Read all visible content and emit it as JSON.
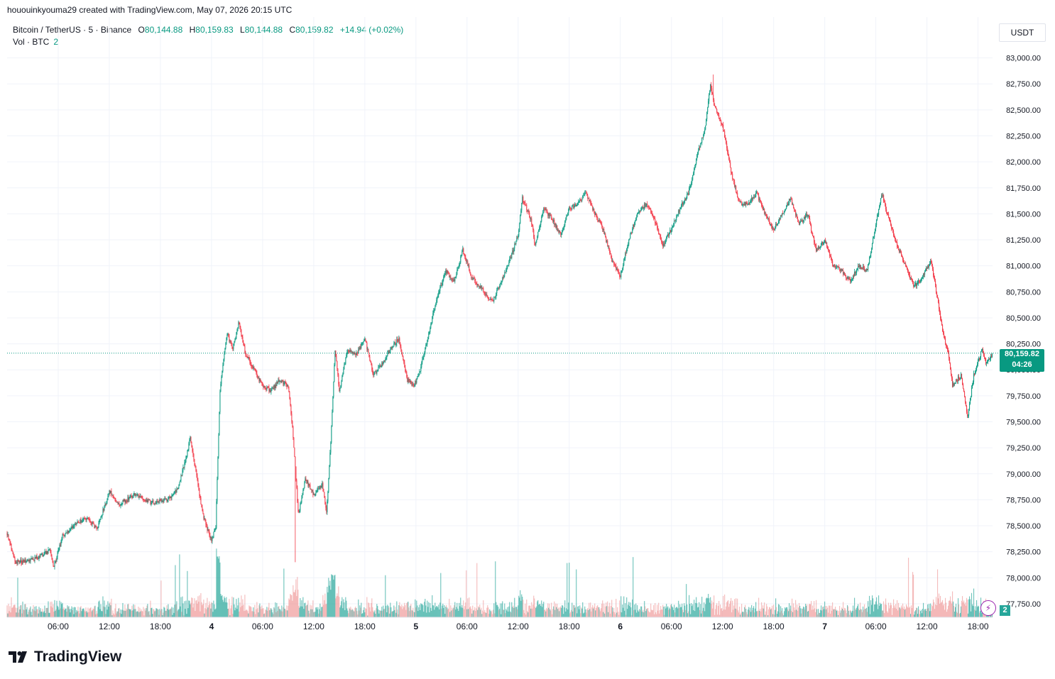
{
  "header": {
    "credit": "hououinkyouma29 created with TradingView.com, May 07, 2026 20:15 UTC"
  },
  "legend": {
    "symbol": "Bitcoin / TetherUS · 5 · Binance",
    "open_label": "O",
    "open": "80,144.88",
    "high_label": "H",
    "high": "80,159.83",
    "low_label": "L",
    "low": "80,144.88",
    "close_label": "C",
    "close": "80,159.82",
    "change": "+14.94 (+0.02%)",
    "vol_label": "Vol · BTC",
    "vol_value": "2"
  },
  "currency_button": "USDT",
  "price_badge": {
    "price": "80,159.82",
    "countdown": "04:26"
  },
  "volume_badge": "2",
  "colors": {
    "up": "#089981",
    "down": "#f23645",
    "up_vol": "#26a69a",
    "down_vol": "#ef9a9a",
    "grid": "#f0f3fa"
  },
  "icons": {
    "alert": "lightning-icon",
    "logo": "tradingview-logo-icon"
  },
  "brand": "TradingView",
  "chart_data": {
    "type": "candlestick",
    "interval": "5m",
    "y_axis": {
      "ylim": [
        77620,
        83120
      ],
      "ticks": [
        77750,
        78000,
        78250,
        78500,
        78750,
        79000,
        79250,
        79500,
        79750,
        80000,
        80250,
        80500,
        80750,
        81000,
        81250,
        81500,
        81750,
        82000,
        82250,
        82500,
        82750,
        83000
      ],
      "tick_labels": [
        "77,750.00",
        "78,000.00",
        "78,250.00",
        "78,500.00",
        "78,750.00",
        "79,000.00",
        "79,250.00",
        "79,500.00",
        "79,750.00",
        "80,000.00",
        "80,250.00",
        "80,500.00",
        "80,750.00",
        "81,000.00",
        "81,250.00",
        "81,500.00",
        "81,750.00",
        "82,000.00",
        "82,250.00",
        "82,500.00",
        "82,750.00",
        "83,000.00"
      ]
    },
    "x_axis": {
      "range_hours": [
        0.0,
        115.7
      ],
      "ticks": [
        {
          "h": 6,
          "label": "06:00"
        },
        {
          "h": 12,
          "label": "12:00"
        },
        {
          "h": 18,
          "label": "18:00"
        },
        {
          "h": 24,
          "label": "4",
          "bold": true
        },
        {
          "h": 30,
          "label": "06:00"
        },
        {
          "h": 36,
          "label": "12:00"
        },
        {
          "h": 42,
          "label": "18:00"
        },
        {
          "h": 48,
          "label": "5",
          "bold": true
        },
        {
          "h": 54,
          "label": "06:00"
        },
        {
          "h": 60,
          "label": "12:00"
        },
        {
          "h": 66,
          "label": "18:00"
        },
        {
          "h": 72,
          "label": "6",
          "bold": true
        },
        {
          "h": 78,
          "label": "06:00"
        },
        {
          "h": 84,
          "label": "12:00"
        },
        {
          "h": 90,
          "label": "18:00"
        },
        {
          "h": 96,
          "label": "7",
          "bold": true
        },
        {
          "h": 102,
          "label": "06:00"
        },
        {
          "h": 108,
          "label": "12:00"
        },
        {
          "h": 114,
          "label": "18:00"
        }
      ]
    },
    "current_price": 80159.82,
    "price_path": [
      [
        0.0,
        78430
      ],
      [
        1.0,
        78150
      ],
      [
        3.0,
        78170
      ],
      [
        5.0,
        78260
      ],
      [
        5.5,
        78100
      ],
      [
        6.5,
        78400
      ],
      [
        8.0,
        78520
      ],
      [
        9.5,
        78580
      ],
      [
        10.5,
        78470
      ],
      [
        11.5,
        78700
      ],
      [
        12.0,
        78840
      ],
      [
        13.0,
        78700
      ],
      [
        15.0,
        78800
      ],
      [
        17.0,
        78720
      ],
      [
        19.0,
        78760
      ],
      [
        20.0,
        78850
      ],
      [
        21.0,
        79150
      ],
      [
        21.5,
        79350
      ],
      [
        22.0,
        79100
      ],
      [
        23.0,
        78600
      ],
      [
        24.0,
        78350
      ],
      [
        24.5,
        78500
      ],
      [
        25.0,
        79800
      ],
      [
        25.8,
        80350
      ],
      [
        26.5,
        80200
      ],
      [
        27.2,
        80450
      ],
      [
        28.0,
        80150
      ],
      [
        29.0,
        80000
      ],
      [
        30.0,
        79850
      ],
      [
        31.0,
        79800
      ],
      [
        32.0,
        79900
      ],
      [
        33.0,
        79850
      ],
      [
        33.6,
        79350
      ],
      [
        34.2,
        78600
      ],
      [
        35.0,
        78950
      ],
      [
        36.0,
        78800
      ],
      [
        37.0,
        78900
      ],
      [
        37.5,
        78620
      ],
      [
        38.0,
        79300
      ],
      [
        38.5,
        80200
      ],
      [
        39.0,
        79800
      ],
      [
        40.0,
        80200
      ],
      [
        41.0,
        80150
      ],
      [
        42.0,
        80300
      ],
      [
        43.0,
        79950
      ],
      [
        44.0,
        80050
      ],
      [
        45.0,
        80200
      ],
      [
        46.0,
        80300
      ],
      [
        47.0,
        79900
      ],
      [
        47.8,
        79850
      ],
      [
        48.5,
        80000
      ],
      [
        49.5,
        80350
      ],
      [
        50.5,
        80700
      ],
      [
        51.5,
        80950
      ],
      [
        52.5,
        80850
      ],
      [
        53.5,
        81150
      ],
      [
        54.5,
        80900
      ],
      [
        55.5,
        80800
      ],
      [
        57.0,
        80650
      ],
      [
        58.0,
        80850
      ],
      [
        59.0,
        81050
      ],
      [
        60.0,
        81300
      ],
      [
        60.5,
        81650
      ],
      [
        61.5,
        81450
      ],
      [
        62.0,
        81200
      ],
      [
        63.0,
        81550
      ],
      [
        64.0,
        81450
      ],
      [
        65.0,
        81300
      ],
      [
        66.0,
        81550
      ],
      [
        67.0,
        81600
      ],
      [
        68.0,
        81700
      ],
      [
        69.0,
        81500
      ],
      [
        70.0,
        81350
      ],
      [
        71.0,
        81050
      ],
      [
        72.0,
        80900
      ],
      [
        73.0,
        81250
      ],
      [
        74.0,
        81500
      ],
      [
        75.0,
        81600
      ],
      [
        76.0,
        81450
      ],
      [
        77.0,
        81200
      ],
      [
        78.0,
        81350
      ],
      [
        79.0,
        81550
      ],
      [
        80.0,
        81700
      ],
      [
        81.0,
        82050
      ],
      [
        82.0,
        82350
      ],
      [
        82.6,
        82750
      ],
      [
        83.0,
        82550
      ],
      [
        84.0,
        82350
      ],
      [
        85.0,
        81900
      ],
      [
        86.0,
        81600
      ],
      [
        87.0,
        81600
      ],
      [
        88.0,
        81700
      ],
      [
        89.0,
        81500
      ],
      [
        90.0,
        81350
      ],
      [
        91.0,
        81500
      ],
      [
        92.0,
        81650
      ],
      [
        93.0,
        81400
      ],
      [
        94.0,
        81500
      ],
      [
        95.0,
        81150
      ],
      [
        96.0,
        81250
      ],
      [
        97.0,
        81000
      ],
      [
        98.0,
        80950
      ],
      [
        99.0,
        80850
      ],
      [
        100.0,
        81000
      ],
      [
        101.0,
        80950
      ],
      [
        102.0,
        81400
      ],
      [
        102.7,
        81700
      ],
      [
        103.5,
        81450
      ],
      [
        104.5,
        81200
      ],
      [
        105.5,
        81000
      ],
      [
        106.5,
        80800
      ],
      [
        107.5,
        80900
      ],
      [
        108.5,
        81050
      ],
      [
        109.0,
        80800
      ],
      [
        109.8,
        80400
      ],
      [
        110.5,
        80150
      ],
      [
        111.0,
        79850
      ],
      [
        112.0,
        79950
      ],
      [
        112.8,
        79550
      ],
      [
        113.5,
        79950
      ],
      [
        114.5,
        80200
      ],
      [
        115.0,
        80050
      ],
      [
        115.7,
        80160
      ]
    ],
    "price_max": {
      "h": 82.9,
      "price": 82840
    },
    "price_min": {
      "h": 33.8,
      "price": 78150
    }
  }
}
